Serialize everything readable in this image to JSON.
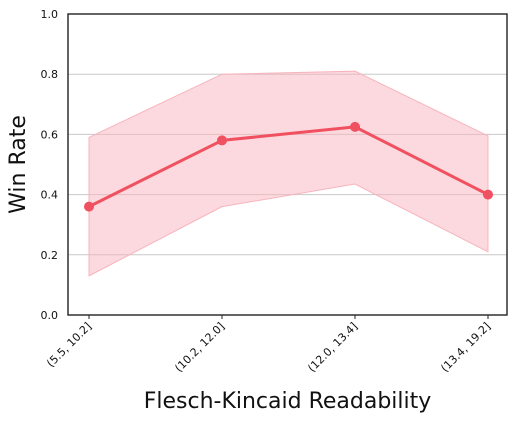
{
  "chart_data": {
    "type": "line",
    "title": "",
    "xlabel": "Flesch-Kincaid Readability",
    "ylabel": "Win Rate",
    "categories": [
      "(5.5, 10.2]",
      "(10.2, 12.0]",
      "(12.0, 13.4]",
      "(13.4, 19.2]"
    ],
    "series": [
      {
        "values": [
          0.36,
          0.58,
          0.625,
          0.4
        ],
        "lower": [
          0.13,
          0.36,
          0.435,
          0.21
        ],
        "upper": [
          0.59,
          0.8,
          0.81,
          0.595
        ],
        "color": "#f0505f",
        "band_color": "#f8b4bd"
      }
    ],
    "ylim": [
      0.0,
      1.0
    ],
    "yticks": [
      0.0,
      0.2,
      0.4,
      0.6,
      0.8,
      1.0
    ],
    "ytick_labels": [
      "0.0",
      "0.2",
      "0.4",
      "0.6",
      "0.8",
      "1.0"
    ],
    "grid": "horizontal"
  }
}
